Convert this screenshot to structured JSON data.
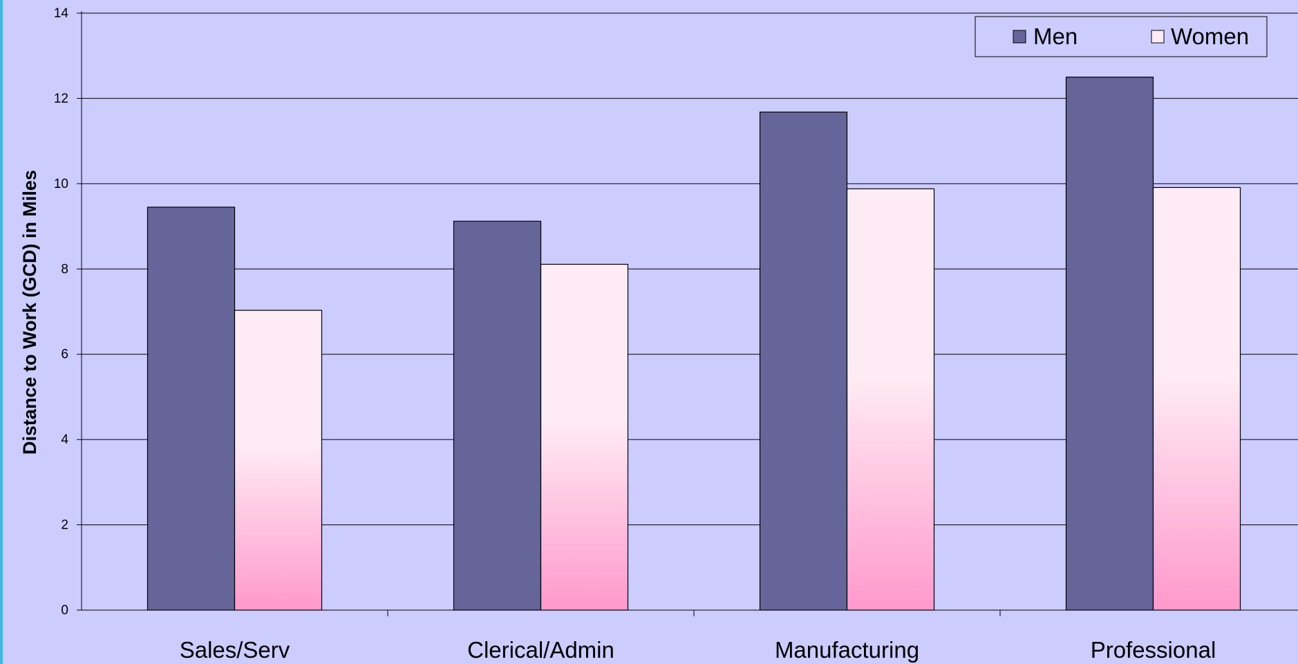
{
  "chart_data": {
    "type": "bar",
    "title": "",
    "xlabel": "",
    "ylabel": "Distance to Work (GCD) in Miles",
    "categories": [
      "Sales/Serv",
      "Clerical/Admin",
      "Manufacturing",
      "Professional"
    ],
    "series": [
      {
        "name": "Men",
        "values": [
          9.45,
          9.12,
          11.68,
          12.5
        ]
      },
      {
        "name": "Women",
        "values": [
          7.03,
          8.11,
          9.88,
          9.91
        ]
      }
    ],
    "ylim": [
      0,
      14
    ],
    "yticks": [
      "0",
      "2",
      "4",
      "6",
      "8",
      "10",
      "12",
      "14"
    ],
    "grid": true,
    "legend": "top-right",
    "colors": {
      "background": "#ccccff",
      "men": "#656599",
      "women_top": "#ffebf4",
      "women_bottom": "#ff99cc",
      "axis": "#000000"
    }
  }
}
